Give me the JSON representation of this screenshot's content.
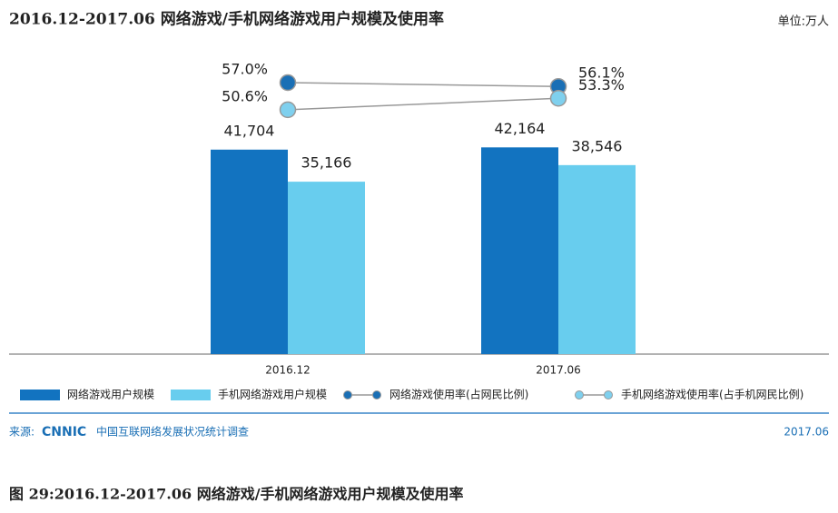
{
  "chart_data": {
    "type": "bar",
    "title": "2016.12-2017.06 网络游戏/手机网络游戏用户规模及使用率",
    "unit": "单位:万人",
    "categories": [
      "2016.12",
      "2017.06"
    ],
    "series": [
      {
        "name": "网络游戏用户规模",
        "color": "#1273c0",
        "values": [
          41704,
          42164
        ],
        "value_labels": [
          "41,704",
          "42,164"
        ]
      },
      {
        "name": "手机网络游戏用户规模",
        "color": "#68cdee",
        "values": [
          35166,
          38546
        ],
        "value_labels": [
          "35,166",
          "38,546"
        ]
      },
      {
        "name": "网络游戏使用率(占网民比例)",
        "type": "line",
        "axis": "y2",
        "color": "#1a6fb5",
        "values": [
          57.0,
          56.1
        ],
        "value_labels": [
          "57.0%",
          "56.1%"
        ]
      },
      {
        "name": "手机网络游戏使用率(占手机网民比例)",
        "type": "line",
        "axis": "y2",
        "color": "#7fd0ee",
        "values": [
          50.6,
          53.3
        ],
        "value_labels": [
          "50.6%",
          "53.3%"
        ]
      }
    ],
    "ylim": [
      0,
      50000
    ],
    "y2lim": [
      45,
      60
    ],
    "source_prefix": "来源:",
    "source_logo": "CNNIC",
    "source_text": "中国互联网络发展状况统计调查",
    "date": "2017.06",
    "caption": "图 29:2016.12-2017.06 网络游戏/手机网络游戏用户规模及使用率"
  }
}
